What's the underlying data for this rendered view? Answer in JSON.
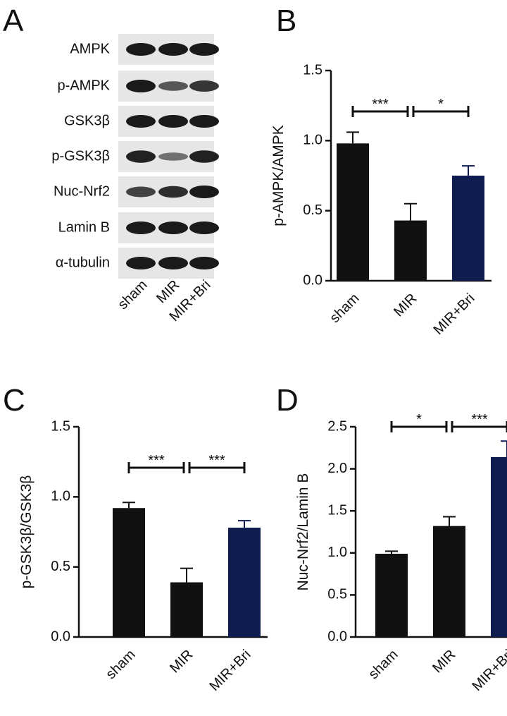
{
  "panel_labels": [
    "A",
    "B",
    "C",
    "D"
  ],
  "blot": {
    "labels": [
      "AMPK",
      "p-AMPK",
      "GSK3β",
      "p-GSK3β",
      "Nuc-Nrf2",
      "Lamin B",
      "α-tubulin"
    ],
    "lanes": [
      "sham",
      "MIR",
      "MIR+Bri"
    ]
  },
  "chart_data": [
    {
      "type": "bar",
      "y_label": "p-AMPK/AMPK",
      "categories": [
        "sham",
        "MIR",
        "MIR+Bri"
      ],
      "values": [
        0.98,
        0.43,
        0.75
      ],
      "errors": [
        0.08,
        0.12,
        0.07
      ],
      "colors": [
        "#111111",
        "#111111",
        "#0f1c50"
      ],
      "ylim": [
        0,
        1.5
      ],
      "yticks": [
        {
          "value": 0,
          "label": "0.0"
        },
        0.5,
        {
          "value": 1,
          "label": "1.0"
        },
        1.5
      ],
      "annotations": [
        "***",
        "*"
      ]
    },
    {
      "type": "bar",
      "y_label": "p-GSK3β/GSK3β",
      "categories": [
        "sham",
        "MIR",
        "MIR+Bri"
      ],
      "values": [
        0.92,
        0.39,
        0.78
      ],
      "errors": [
        0.04,
        0.1,
        0.05
      ],
      "colors": [
        "#111111",
        "#111111",
        "#0f1c50"
      ],
      "ylim": [
        0,
        1.5
      ],
      "yticks": [
        {
          "value": 0,
          "label": "0.0"
        },
        0.5,
        {
          "value": 1,
          "label": "1.0"
        },
        1.5
      ],
      "annotations": [
        "***",
        "***"
      ]
    },
    {
      "type": "bar",
      "y_label": "Nuc-Nrf2/Lamin B",
      "categories": [
        "sham",
        "MIR",
        "MIR+Bri"
      ],
      "values": [
        0.99,
        1.32,
        2.14
      ],
      "errors": [
        0.03,
        0.11,
        0.19
      ],
      "colors": [
        "#111111",
        "#111111",
        "#0f1c50"
      ],
      "ylim": [
        0,
        2.5
      ],
      "yticks": [
        {
          "value": 0,
          "label": "0.0"
        },
        0.5,
        {
          "value": 1,
          "label": "1.0"
        },
        1.5,
        {
          "value": 2,
          "label": "2.0"
        },
        2.5
      ],
      "annotations": [
        "*",
        "***"
      ]
    }
  ]
}
